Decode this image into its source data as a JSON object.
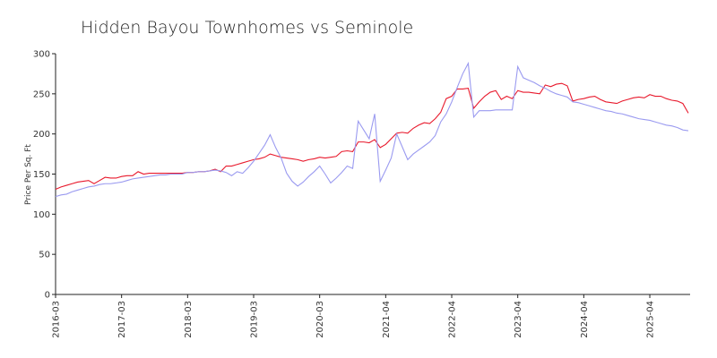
{
  "chart_data": {
    "type": "line",
    "title": "Hidden Bayou Townhomes vs Seminole",
    "y_label": "Price Per Sq. Ft",
    "x": [
      "2016-03",
      "2016-04",
      "2016-05",
      "2016-06",
      "2016-07",
      "2016-08",
      "2016-09",
      "2016-10",
      "2016-11",
      "2016-12",
      "2017-01",
      "2017-02",
      "2017-03",
      "2017-04",
      "2017-05",
      "2017-06",
      "2017-07",
      "2017-08",
      "2017-09",
      "2017-10",
      "2017-11",
      "2017-12",
      "2018-01",
      "2018-02",
      "2018-03",
      "2018-04",
      "2018-05",
      "2018-06",
      "2018-07",
      "2018-08",
      "2018-09",
      "2018-10",
      "2018-11",
      "2018-12",
      "2019-01",
      "2019-02",
      "2019-03",
      "2019-04",
      "2019-05",
      "2019-06",
      "2019-07",
      "2019-08",
      "2019-09",
      "2019-10",
      "2019-11",
      "2019-12",
      "2020-01",
      "2020-02",
      "2020-03",
      "2020-04",
      "2020-05",
      "2020-06",
      "2020-07",
      "2020-08",
      "2020-09",
      "2020-10",
      "2020-11",
      "2021-01",
      "2021-02",
      "2021-03",
      "2021-04",
      "2021-05",
      "2021-06",
      "2021-07",
      "2021-08",
      "2021-09",
      "2021-10",
      "2021-11",
      "2021-12",
      "2022-01",
      "2022-02",
      "2022-03",
      "2022-04",
      "2022-05",
      "2022-06",
      "2022-07",
      "2022-08",
      "2022-09",
      "2022-10",
      "2022-11",
      "2022-12",
      "2023-01",
      "2023-02",
      "2023-03",
      "2023-04",
      "2023-05",
      "2023-06",
      "2023-07",
      "2023-08",
      "2023-09",
      "2023-10",
      "2023-11",
      "2023-12",
      "2024-01",
      "2024-02",
      "2024-03",
      "2024-04",
      "2024-05",
      "2024-06",
      "2024-07",
      "2024-08",
      "2024-09",
      "2024-10",
      "2024-11",
      "2024-12",
      "2025-01",
      "2025-02",
      "2025-03",
      "2025-04",
      "2025-05",
      "2025-06",
      "2025-07",
      "2025-08",
      "2025-09",
      "2025-10",
      "2025-11"
    ],
    "series": [
      {
        "color": "#e8192c",
        "values": [
          131,
          134,
          136,
          138,
          140,
          141,
          142,
          138,
          142,
          146,
          145,
          145,
          147,
          148,
          148,
          153,
          150,
          151,
          151,
          151,
          151,
          151,
          151,
          151,
          152,
          152,
          153,
          153,
          154,
          156,
          153,
          160,
          160,
          162,
          164,
          166,
          168,
          169,
          171,
          175,
          173,
          171,
          170,
          169,
          168,
          166,
          168,
          169,
          171,
          170,
          171,
          172,
          178,
          179,
          178,
          190,
          190,
          189,
          193,
          183,
          187,
          194,
          201,
          202,
          201,
          207,
          211,
          214,
          213,
          219,
          227,
          244,
          247,
          256,
          256,
          257,
          232,
          240,
          247,
          252,
          254,
          243,
          247,
          244,
          254,
          252,
          252,
          251,
          250,
          261,
          259,
          262,
          263,
          260,
          241,
          243,
          244,
          246,
          247,
          243,
          240,
          239,
          238,
          241,
          243,
          245,
          246,
          245,
          249,
          247,
          247,
          244,
          242,
          241,
          238,
          226
        ]
      },
      {
        "color": "#9a9af0",
        "values": [
          122,
          124,
          125,
          128,
          130,
          132,
          134,
          135,
          137,
          138,
          138,
          139,
          140,
          142,
          144,
          145,
          146,
          147,
          148,
          149,
          149,
          150,
          150,
          150,
          152,
          152,
          153,
          153,
          154,
          155,
          154,
          152,
          148,
          153,
          151,
          158,
          166,
          176,
          186,
          199,
          183,
          170,
          151,
          141,
          135,
          140,
          147,
          153,
          160,
          150,
          139,
          145,
          152,
          160,
          157,
          216,
          205,
          194,
          225,
          141,
          155,
          170,
          200,
          184,
          168,
          175,
          180,
          185,
          190,
          198,
          215,
          225,
          240,
          258,
          275,
          288,
          221,
          229,
          229,
          229,
          230,
          230,
          230,
          230,
          284,
          270,
          267,
          264,
          260,
          257,
          253,
          250,
          248,
          246,
          240,
          239,
          237,
          235,
          233,
          231,
          229,
          228,
          226,
          225,
          223,
          221,
          219,
          218,
          217,
          215,
          213,
          211,
          210,
          208,
          205,
          204
        ]
      }
    ],
    "xticks": [
      "2016-03",
      "2017-03",
      "2018-03",
      "2019-03",
      "2020-03",
      "2021-04",
      "2022-04",
      "2023-04",
      "2024-04",
      "2025-04"
    ],
    "ylim": [
      0,
      300
    ],
    "yticks": [
      0,
      50,
      100,
      150,
      200,
      250,
      300
    ]
  }
}
